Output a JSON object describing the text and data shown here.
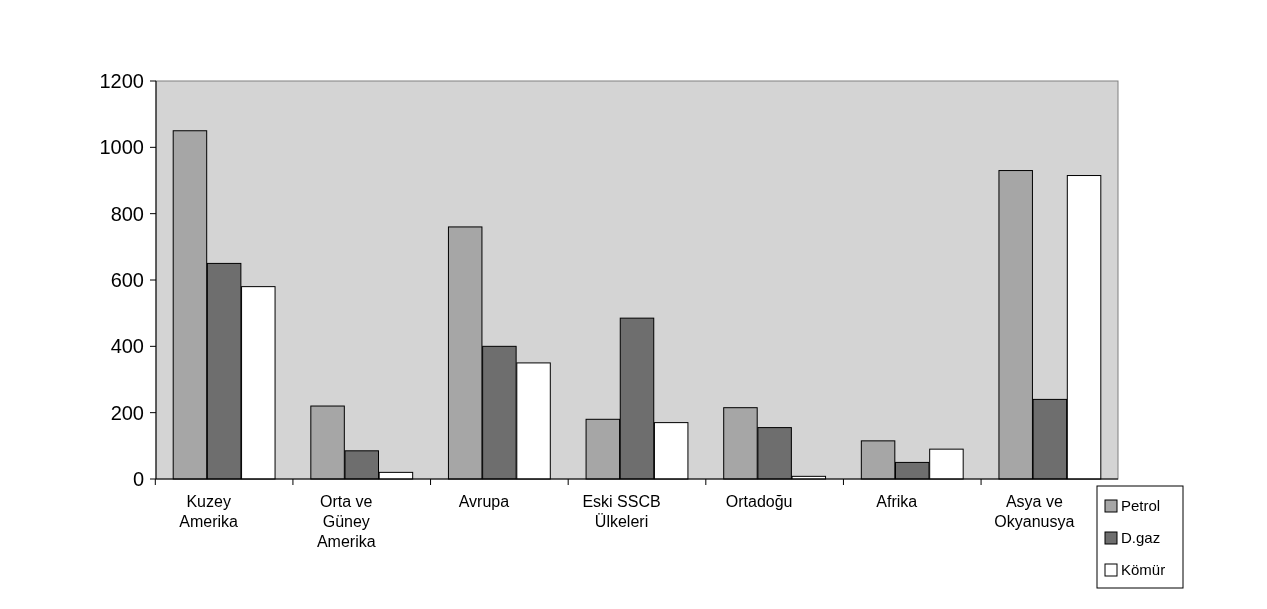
{
  "chart_data": {
    "type": "bar",
    "categories": [
      "Kuzey Amerika",
      "Orta ve Güney Amerika",
      "Avrupa",
      "Eski SSCB Ülkeleri",
      "Ortadoğu",
      "Afrika",
      "Asya ve Okyanusya"
    ],
    "series": [
      {
        "name": "Petrol",
        "color": "#a6a6a6",
        "values": [
          1050,
          220,
          760,
          180,
          215,
          115,
          930
        ]
      },
      {
        "name": "D.gaz",
        "color": "#6e6e6e",
        "values": [
          650,
          85,
          400,
          485,
          155,
          50,
          240
        ]
      },
      {
        "name": "Kömür",
        "color": "#ffffff",
        "values": [
          580,
          20,
          350,
          170,
          8,
          90,
          915
        ]
      }
    ],
    "ylim": [
      0,
      1200
    ],
    "yticks": [
      0,
      200,
      400,
      600,
      800,
      1000,
      1200
    ],
    "grid": false,
    "legend": "bottom right"
  }
}
